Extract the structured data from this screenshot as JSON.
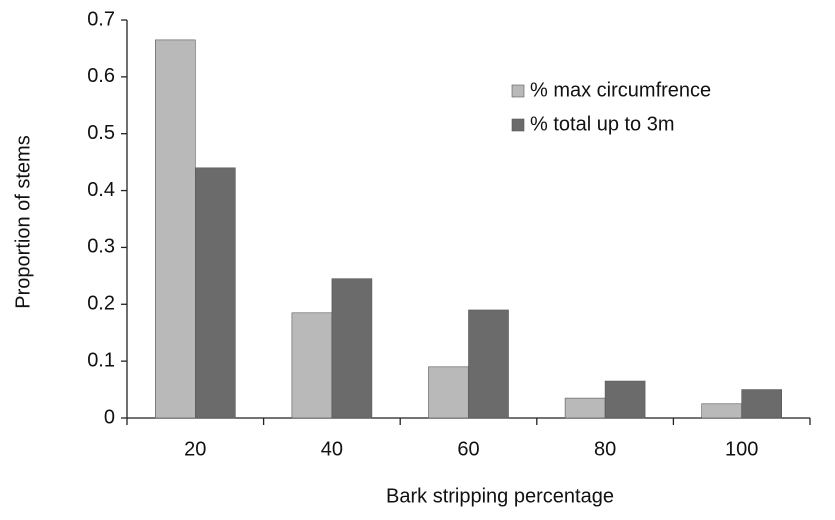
{
  "chart_data": {
    "type": "bar",
    "xlabel": "Bark stripping percentage",
    "ylabel": "Proportion of stems",
    "categories": [
      "20",
      "40",
      "60",
      "80",
      "100"
    ],
    "series": [
      {
        "name": "% max circumfrence",
        "color": "#b9b9b9",
        "values": [
          0.665,
          0.185,
          0.09,
          0.035,
          0.025
        ]
      },
      {
        "name": "% total up to 3m",
        "color": "#6b6b6b",
        "values": [
          0.44,
          0.245,
          0.19,
          0.065,
          0.05
        ]
      }
    ],
    "ylim": [
      0,
      0.7
    ],
    "yticks": [
      0,
      0.1,
      0.2,
      0.3,
      0.4,
      0.5,
      0.6,
      0.7
    ],
    "grid": false,
    "legend": "upper right"
  }
}
